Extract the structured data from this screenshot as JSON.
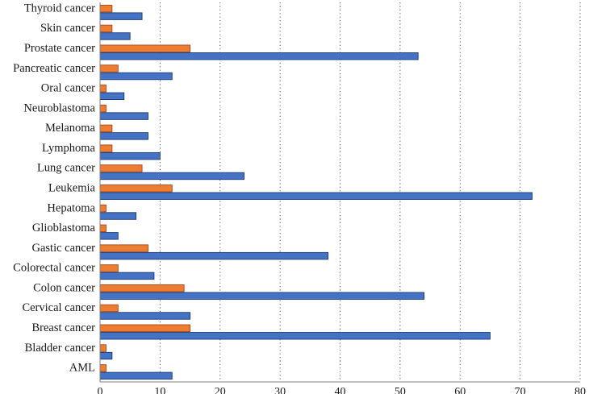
{
  "chart_data": {
    "type": "bar",
    "orientation": "horizontal",
    "categories": [
      "AML",
      "Bladder cancer",
      "Breast cancer",
      "Cervical cancer",
      "Colon cancer",
      "Colorectal cancer",
      "Gastic cancer",
      "Glioblastoma",
      "Hepatoma",
      "Leukemia",
      "Lung cancer",
      "Lymphoma",
      "Melanoma",
      "Neuroblastoma",
      "Oral cancer",
      "Pancreatic cancer",
      "Prostate cancer",
      "Skin cancer",
      "Thyroid cancer"
    ],
    "series": [
      {
        "values": [
          12,
          2,
          65,
          15,
          54,
          9,
          38,
          3,
          6,
          72,
          24,
          10,
          8,
          8,
          4,
          12,
          53,
          5,
          7
        ],
        "color": "#4472c4"
      },
      {
        "values": [
          1,
          1,
          15,
          3,
          14,
          3,
          8,
          1,
          1,
          12,
          7,
          2,
          2,
          1,
          1,
          3,
          15,
          2,
          2
        ],
        "color": "#ed7d31"
      }
    ],
    "xlim": [
      0,
      80
    ],
    "xticks": [
      "0",
      "10",
      "20",
      "30",
      "40",
      "50",
      "60",
      "70",
      "80"
    ],
    "title": "",
    "xlabel": "",
    "ylabel": "",
    "grid": "vertical dotted"
  }
}
